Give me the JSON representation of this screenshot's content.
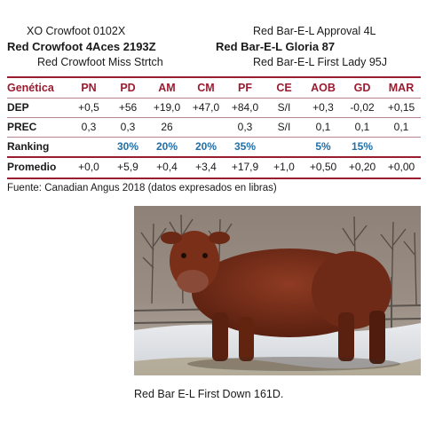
{
  "pedigree": {
    "sire_sire": "XO Crowfoot 0102X",
    "sire": "Red Crowfoot 4Aces 2193Z",
    "sire_dam": "Red Crowfoot Miss Strtch",
    "dam_sire": "Red Bar-E-L Approval 4L",
    "dam": "Red Bar-E-L Gloria 87",
    "dam_dam": "Red Bar-E-L First Lady 95J"
  },
  "table": {
    "header_label": "Genética",
    "columns": [
      "PN",
      "PD",
      "AM",
      "CM",
      "PF",
      "CE",
      "AOB",
      "GD",
      "MAR"
    ],
    "rows": [
      {
        "label": "DEP",
        "values": [
          "+0,5",
          "+56",
          "+19,0",
          "+47,0",
          "+84,0",
          "S/I",
          "+0,3",
          "-0,02",
          "+0,15"
        ]
      },
      {
        "label": "PREC",
        "values": [
          "0,3",
          "0,3",
          "26",
          "",
          "0,3",
          "S/I",
          "0,1",
          "0,1",
          "0,1"
        ]
      },
      {
        "label": "Ranking",
        "values": [
          "",
          "30%",
          "20%",
          "20%",
          "35%",
          "",
          "5%",
          "15%",
          ""
        ]
      },
      {
        "label": "Promedio",
        "values": [
          "+0,0",
          "+5,9",
          "+0,4",
          "+3,4",
          "+17,9",
          "+1,0",
          "+0,50",
          "+0,20",
          "+0,00"
        ]
      }
    ]
  },
  "footnote": "Fuente: Canadian Angus 2018 (datos expresados en libras)",
  "caption": "Red Bar E-L First Down 161D.",
  "colors": {
    "accent": "#9b1c31",
    "ranking": "#2170a8"
  }
}
